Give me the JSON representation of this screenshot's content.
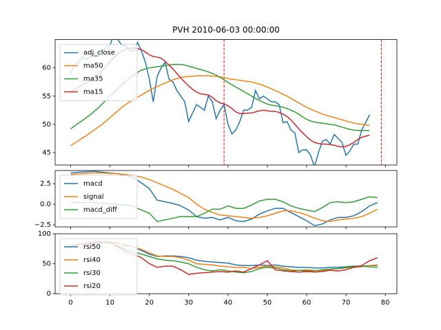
{
  "chart_data": [
    {
      "type": "line",
      "title": "PVH 2010-06-03 00:00:00",
      "xlim": [
        -3.95,
        82.95
      ],
      "ylim": [
        42.8,
        65
      ],
      "yticks": [
        45,
        50,
        55,
        60
      ],
      "legend": "upper left",
      "vlines": [
        39,
        79
      ],
      "vline_color": "#ff0000",
      "x": [
        0,
        1,
        2,
        3,
        4,
        5,
        6,
        7,
        8,
        9,
        10,
        11,
        12,
        13,
        14,
        15,
        16,
        17,
        18,
        19,
        20,
        21,
        22,
        23,
        24,
        25,
        26,
        27,
        28,
        29,
        30,
        31,
        32,
        33,
        34,
        35,
        36,
        37,
        38,
        39,
        40,
        41,
        42,
        43,
        44,
        45,
        46,
        47,
        48,
        49,
        50,
        51,
        52,
        53,
        54,
        55,
        56,
        57,
        58,
        59,
        60,
        61,
        62,
        63,
        64,
        65,
        66,
        67,
        68,
        69,
        70,
        71,
        72,
        73,
        74,
        75,
        76
      ],
      "series": [
        {
          "name": "adj_close",
          "color": "#1f77b4",
          "values": [
            59,
            60.5,
            61,
            62,
            61.5,
            62,
            62.5,
            62,
            63,
            63.5,
            64,
            66,
            65,
            64,
            64,
            63,
            63,
            64.5,
            63,
            61,
            58,
            54,
            58.5,
            60,
            61,
            58,
            57.5,
            56,
            55,
            54,
            50.5,
            52,
            53.5,
            53,
            52.5,
            55,
            54,
            51,
            52.5,
            53.5,
            50,
            48.3,
            49,
            50.5,
            52.5,
            52.5,
            53,
            56,
            54.5,
            55,
            54.5,
            54,
            54,
            53.5,
            50.3,
            50.5,
            49,
            48.5,
            45,
            45.5,
            45.5,
            44.5,
            42.5,
            45,
            47,
            47.3,
            46.5,
            48.2,
            47.5,
            46.8,
            44.5,
            45.3,
            46.5,
            46.5,
            49,
            50.3,
            51.7
          ]
        },
        {
          "name": "ma50",
          "color": "#ff7f0e",
          "values": [
            46.2,
            46.7,
            47.1,
            47.6,
            48,
            48.5,
            49,
            49.5,
            50,
            50.6,
            51.2,
            51.8,
            52.4,
            53,
            53.5,
            54,
            54.4,
            54.8,
            55.2,
            55.6,
            56,
            56.4,
            56.7,
            57,
            57.3,
            57.6,
            57.9,
            58.1,
            58.3,
            58.4,
            58.5,
            58.5,
            58.6,
            58.6,
            58.6,
            58.6,
            58.5,
            58.5,
            58.4,
            58.3,
            58.1,
            58,
            57.9,
            57.8,
            57.7,
            57.6,
            57.5,
            57.3,
            57.1,
            56.9,
            56.6,
            56.3,
            56,
            55.7,
            55.3,
            55,
            54.6,
            54.2,
            53.8,
            53.4,
            53,
            52.7,
            52.4,
            52.1,
            51.8,
            51.6,
            51.4,
            51.2,
            51,
            50.8,
            50.6,
            50.4,
            50.2,
            50.1,
            50,
            49.9,
            49.8
          ]
        },
        {
          "name": "ma35",
          "color": "#2ca02c",
          "values": [
            49.2,
            49.7,
            50.2,
            50.7,
            51.2,
            51.7,
            52.3,
            52.9,
            53.6,
            54.3,
            55,
            55.6,
            56.3,
            57,
            57.6,
            58.2,
            58.7,
            59.2,
            59.6,
            59.8,
            60,
            60.1,
            60.2,
            60.3,
            60.4,
            60.5,
            60.6,
            60.6,
            60.6,
            60.5,
            60.3,
            60.1,
            59.9,
            59.7,
            59.5,
            59.3,
            59,
            58.7,
            58.3,
            57.9,
            57.4,
            57,
            56.6,
            56.2,
            55.8,
            55.4,
            55,
            54.6,
            54.2,
            53.9,
            53.6,
            53.4,
            53.3,
            53.2,
            53,
            52.8,
            52.5,
            52.2,
            51.8,
            51.3,
            50.9,
            50.6,
            50.4,
            50.3,
            50.2,
            50.1,
            50,
            49.9,
            49.7,
            49.5,
            49.3,
            49.1,
            49,
            48.9,
            48.9,
            48.9,
            48.9
          ]
        },
        {
          "name": "ma15",
          "color": "#d62728",
          "values": [
            55.8,
            56.2,
            56.6,
            57,
            57.3,
            57.7,
            58.2,
            58.8,
            59.5,
            60.3,
            61,
            61.8,
            62.5,
            63,
            63.3,
            63.5,
            63.5,
            63.4,
            63.2,
            62.8,
            62.3,
            62,
            61.9,
            61.7,
            61.2,
            60.5,
            59.8,
            59,
            58.2,
            57.5,
            56.8,
            56.2,
            55.7,
            55.4,
            55.3,
            55.2,
            54.8,
            54.2,
            53.8,
            53.6,
            53.3,
            52.8,
            52.2,
            51.9,
            51.9,
            52,
            52,
            52.2,
            52.4,
            52.5,
            52.4,
            52.3,
            52.3,
            52.1,
            51.8,
            51.4,
            50.8,
            50,
            49.2,
            48.5,
            47.8,
            47.2,
            46.8,
            46.6,
            46.5,
            46.5,
            46.4,
            46.3,
            46.1,
            46,
            46.1,
            46.4,
            46.8,
            47.3,
            47.7,
            47.9,
            48.1
          ]
        }
      ]
    },
    {
      "type": "line",
      "xlim": [
        -3.95,
        82.95
      ],
      "ylim": [
        -2.75,
        4.1
      ],
      "yticks": [
        {
          "value": 2.5,
          "label": "2.5"
        },
        {
          "value": 0,
          "label": "0.0"
        },
        {
          "value": -2.5,
          "label": "−2.5"
        }
      ],
      "legend": "upper left",
      "x": [
        0,
        2,
        4,
        6,
        8,
        10,
        12,
        14,
        16,
        18,
        20,
        22,
        24,
        26,
        28,
        30,
        32,
        34,
        36,
        38,
        40,
        42,
        44,
        46,
        48,
        50,
        52,
        54,
        56,
        58,
        60,
        62,
        64,
        66,
        68,
        70,
        72,
        74,
        76,
        78
      ],
      "series": [
        {
          "name": "macd",
          "color": "#1f77b4",
          "values": [
            3.8,
            3.9,
            3.95,
            4,
            3.9,
            3.8,
            3.7,
            3.5,
            3.2,
            2.6,
            1.9,
            0.5,
            0.3,
            0.1,
            -0.2,
            -0.7,
            -1.5,
            -1.7,
            -1.6,
            -1.9,
            -1.6,
            -2,
            -2.1,
            -1.8,
            -1.2,
            -0.8,
            -0.5,
            -0.5,
            -1,
            -1.5,
            -2,
            -2.6,
            -2.4,
            -1.9,
            -1.6,
            -1.6,
            -1.4,
            -0.9,
            -0.2,
            0.2
          ]
        },
        {
          "name": "signal",
          "color": "#ff7f0e",
          "values": [
            3.6,
            3.7,
            3.75,
            3.8,
            3.8,
            3.75,
            3.7,
            3.6,
            3.5,
            3.3,
            3,
            2.6,
            2.2,
            1.8,
            1.3,
            0.8,
            0,
            -0.6,
            -1,
            -1.3,
            -1.4,
            -1.5,
            -1.6,
            -1.7,
            -1.6,
            -1.4,
            -1.1,
            -0.8,
            -0.8,
            -1,
            -1.3,
            -1.7,
            -2,
            -2.1,
            -1.9,
            -1.8,
            -1.7,
            -1.5,
            -1.1,
            -0.6
          ]
        },
        {
          "name": "macd_diff",
          "color": "#2ca02c",
          "values": [
            0.2,
            0.2,
            0.2,
            0.2,
            0.1,
            0.05,
            0,
            -0.1,
            -0.3,
            -0.7,
            -1.1,
            -2.1,
            -1.9,
            -1.7,
            -1.5,
            -1.5,
            -1.5,
            -1.1,
            -0.6,
            -0.6,
            -0.2,
            -0.5,
            -0.5,
            -0.1,
            0.4,
            0.6,
            0.6,
            0.3,
            -0.2,
            -0.5,
            -0.7,
            -0.9,
            -0.4,
            0.2,
            0.3,
            0.2,
            0.3,
            0.6,
            0.9,
            0.8
          ]
        }
      ]
    },
    {
      "type": "line",
      "xlim": [
        -3.95,
        82.95
      ],
      "xticks": [
        0,
        10,
        20,
        30,
        40,
        50,
        60,
        70,
        80
      ],
      "ylim": [
        0,
        100
      ],
      "yticks": [
        0,
        50,
        100
      ],
      "legend": "upper left",
      "x": [
        0,
        2,
        4,
        6,
        8,
        10,
        12,
        14,
        16,
        18,
        20,
        22,
        24,
        26,
        28,
        30,
        32,
        34,
        36,
        38,
        40,
        42,
        44,
        46,
        48,
        50,
        52,
        54,
        56,
        58,
        60,
        62,
        64,
        66,
        68,
        70,
        72,
        74,
        76,
        78
      ],
      "series": [
        {
          "name": "rsi50",
          "color": "#1f77b4",
          "values": [
            80,
            82,
            83,
            84,
            85,
            86,
            85,
            80,
            78,
            72,
            66,
            62,
            63,
            63,
            62,
            60,
            56,
            54,
            53,
            52,
            51,
            48,
            47,
            47,
            48,
            47,
            48,
            46,
            45,
            44,
            44,
            43,
            43,
            44,
            44,
            45,
            46,
            46,
            47,
            47
          ]
        },
        {
          "name": "rsi40",
          "color": "#ff7f0e",
          "values": [
            80,
            82,
            84,
            85,
            86,
            86,
            84,
            82,
            78,
            74,
            68,
            63,
            62,
            62,
            60,
            56,
            50,
            49,
            48,
            46,
            45,
            44,
            44,
            42,
            44,
            46,
            45,
            43,
            40,
            39,
            40,
            39,
            38,
            41,
            42,
            43,
            44,
            45,
            47,
            48
          ]
        },
        {
          "name": "rsi30",
          "color": "#2ca02c",
          "values": [
            80,
            82,
            84,
            86,
            86,
            85,
            80,
            74,
            70,
            66,
            62,
            58,
            56,
            55,
            53,
            50,
            44,
            40,
            38,
            40,
            38,
            36,
            35,
            37,
            42,
            44,
            43,
            40,
            38,
            39,
            38,
            38,
            40,
            41,
            42,
            44,
            45,
            46,
            45,
            44
          ]
        },
        {
          "name": "rsi20",
          "color": "#d62728",
          "values": [
            80,
            82,
            84,
            86,
            87,
            86,
            78,
            70,
            66,
            60,
            50,
            44,
            46,
            46,
            40,
            32,
            34,
            35,
            36,
            37,
            36,
            38,
            36,
            42,
            48,
            55,
            40,
            38,
            37,
            36,
            37,
            36,
            37,
            39,
            38,
            40,
            44,
            47,
            55,
            60
          ]
        }
      ]
    }
  ]
}
